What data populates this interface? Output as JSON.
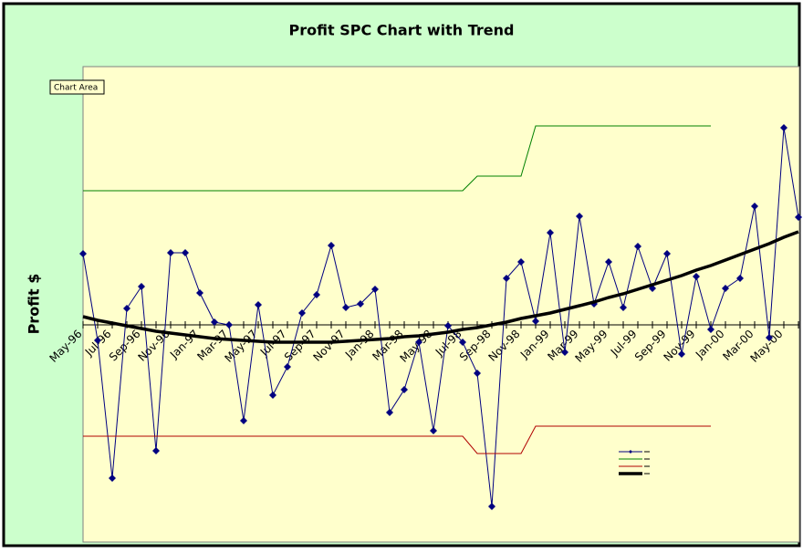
{
  "chart_data": {
    "type": "line",
    "title": "Profit SPC Chart with Trend",
    "y_label": "Profit $",
    "tooltip": "Chart Area",
    "categories": [
      "May-96",
      null,
      "Jul-96",
      null,
      "Sep-96",
      null,
      "Nov-96",
      null,
      "Jan-97",
      null,
      "Mar-97",
      null,
      "May-97",
      null,
      "Jul-97",
      null,
      "Sep-97",
      null,
      "Nov-97",
      null,
      "Jan-98",
      null,
      "Mar-98",
      null,
      "May-98",
      null,
      "Jul-98",
      null,
      "Sep-98",
      null,
      "Nov-98",
      null,
      "Jan-99",
      null,
      "Mar-99",
      null,
      "May-99",
      null,
      "Jul-99",
      null,
      "Sep-99",
      null,
      "Nov-99",
      null,
      "Jan-00",
      null,
      "Mar-00",
      null,
      "May-00",
      null
    ],
    "series": [
      {
        "color": "#000080",
        "markers": true,
        "width": 1,
        "values": [
          78,
          -17,
          -168,
          18,
          42,
          -138,
          79,
          79,
          35,
          3,
          0,
          -105,
          22,
          -77,
          -46,
          13,
          33,
          87,
          19,
          23,
          39,
          -96,
          -71,
          -19,
          -116,
          -1,
          -19,
          -53,
          -199,
          51,
          69,
          4,
          101,
          -30,
          119,
          23,
          69,
          19,
          86,
          40,
          78,
          -32,
          53,
          -5,
          40,
          51,
          130,
          -14,
          216,
          118
        ]
      },
      {
        "color": "#008000",
        "markers": false,
        "width": 1,
        "values": [
          147,
          147,
          147,
          147,
          147,
          147,
          147,
          147,
          147,
          147,
          147,
          147,
          147,
          147,
          147,
          147,
          147,
          147,
          147,
          147,
          147,
          147,
          147,
          147,
          147,
          147,
          147,
          163,
          163,
          163,
          163,
          218,
          218,
          218,
          218,
          218,
          218,
          218,
          218,
          218,
          218,
          218,
          218,
          218,
          null,
          null,
          null,
          null,
          null,
          null
        ]
      },
      {
        "color": "#b00000",
        "markers": false,
        "width": 1,
        "values": [
          -122,
          -122,
          -122,
          -122,
          -122,
          -122,
          -122,
          -122,
          -122,
          -122,
          -122,
          -122,
          -122,
          -122,
          -122,
          -122,
          -122,
          -122,
          -122,
          -122,
          -122,
          -122,
          -122,
          -122,
          -122,
          -122,
          -122,
          -141,
          -141,
          -141,
          -141,
          -111,
          -111,
          -111,
          -111,
          -111,
          -111,
          -111,
          -111,
          -111,
          -111,
          -111,
          -111,
          -111,
          null,
          null,
          null,
          null,
          null,
          null
        ]
      },
      {
        "color": "#000000",
        "markers": false,
        "width": 3.5,
        "values": [
          9,
          5,
          2,
          -1,
          -4,
          -7,
          -9,
          -11,
          -13,
          -15,
          -16,
          -17,
          -18,
          -19,
          -19,
          -19,
          -19,
          -19,
          -18,
          -17,
          -16,
          -15,
          -13,
          -12,
          -10,
          -8,
          -5,
          -3,
          0,
          3,
          7,
          10,
          13,
          17,
          21,
          25,
          30,
          34,
          39,
          44,
          49,
          54,
          60,
          65,
          71,
          77,
          83,
          89,
          96,
          102
        ]
      }
    ],
    "ylim": [
      -238,
      283
    ],
    "legend": "lower right",
    "background": "#ccffcc",
    "plot_background": "#ffffcc"
  }
}
